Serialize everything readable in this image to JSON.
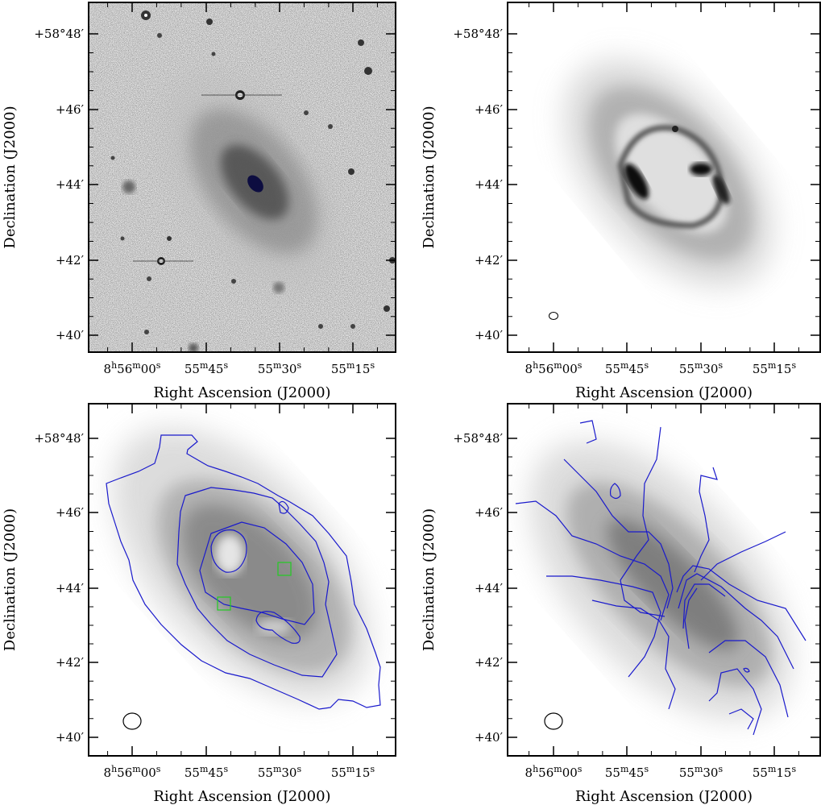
{
  "figure": {
    "panels": [
      {
        "id": "optical",
        "xlabel": "Right Ascension (J2000)",
        "ylabel": "Declination (J2000)",
        "dec_ticks": [
          "+58°48′",
          "+46′",
          "+44′",
          "+42′",
          "+40′"
        ],
        "ra_ticks": [
          {
            "h": "8",
            "hs": "h",
            "m": "56",
            "ms": "m",
            "s": "00",
            "ss": "s"
          },
          {
            "h": "",
            "hs": "",
            "m": "55",
            "ms": "m",
            "s": "45",
            "ss": "s"
          },
          {
            "h": "",
            "hs": "",
            "m": "55",
            "ms": "m",
            "s": "30",
            "ss": "s"
          },
          {
            "h": "",
            "hs": "",
            "m": "55",
            "ms": "m",
            "s": "15",
            "ss": "s"
          }
        ]
      },
      {
        "id": "hi-intensity",
        "xlabel": "Right Ascension (J2000)",
        "ylabel": "Declination (J2000)",
        "dec_ticks": [
          "+58°48′",
          "+46′",
          "+44′",
          "+42′",
          "+40′"
        ],
        "ra_ticks": [
          {
            "h": "8",
            "hs": "h",
            "m": "56",
            "ms": "m",
            "s": "00",
            "ss": "s"
          },
          {
            "h": "",
            "hs": "",
            "m": "55",
            "ms": "m",
            "s": "45",
            "ss": "s"
          },
          {
            "h": "",
            "hs": "",
            "m": "55",
            "ms": "m",
            "s": "30",
            "ss": "s"
          },
          {
            "h": "",
            "hs": "",
            "m": "55",
            "ms": "m",
            "s": "15",
            "ss": "s"
          }
        ]
      },
      {
        "id": "hi-contours",
        "xlabel": "Right Ascension (J2000)",
        "ylabel": "Declination (J2000)",
        "dec_ticks": [
          "+58°48′",
          "+46′",
          "+44′",
          "+42′",
          "+40′"
        ],
        "ra_ticks": [
          {
            "h": "8",
            "hs": "h",
            "m": "56",
            "ms": "m",
            "s": "00",
            "ss": "s"
          },
          {
            "h": "",
            "hs": "",
            "m": "55",
            "ms": "m",
            "s": "45",
            "ss": "s"
          },
          {
            "h": "",
            "hs": "",
            "m": "55",
            "ms": "m",
            "s": "30",
            "ss": "s"
          },
          {
            "h": "",
            "hs": "",
            "m": "55",
            "ms": "m",
            "s": "15",
            "ss": "s"
          }
        ]
      },
      {
        "id": "velocity-field",
        "xlabel": "Right Ascension (J2000)",
        "ylabel": "Declination (J2000)",
        "dec_ticks": [
          "+58°48′",
          "+46′",
          "+44′",
          "+42′",
          "+40′"
        ],
        "ra_ticks": [
          {
            "h": "8",
            "hs": "h",
            "m": "56",
            "ms": "m",
            "s": "00",
            "ss": "s"
          },
          {
            "h": "",
            "hs": "",
            "m": "55",
            "ms": "m",
            "s": "45",
            "ss": "s"
          },
          {
            "h": "",
            "hs": "",
            "m": "55",
            "ms": "m",
            "s": "30",
            "ss": "s"
          },
          {
            "h": "",
            "hs": "",
            "m": "55",
            "ms": "m",
            "s": "15",
            "ss": "s"
          }
        ]
      }
    ],
    "colors": {
      "frame": "#000000",
      "contour": "#1a1acc",
      "box": "#22cc22",
      "beam": "#000000"
    }
  }
}
